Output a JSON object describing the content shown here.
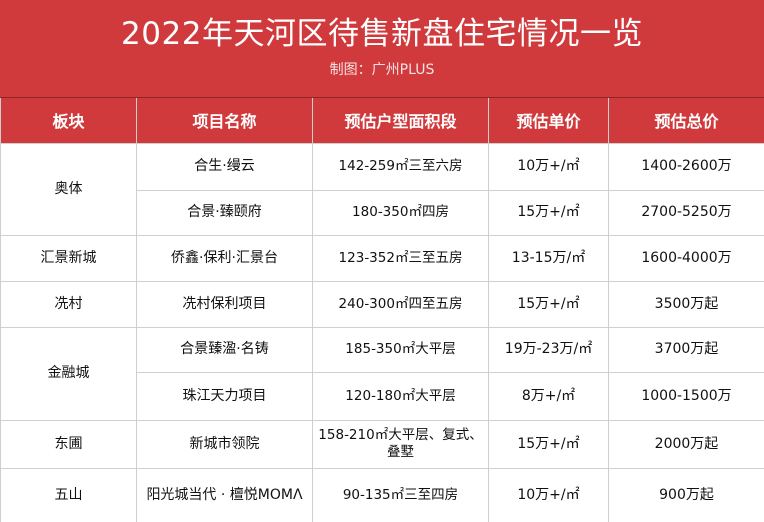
{
  "header": {
    "title": "2022年天河区待售新盘住宅情况一览",
    "subtitle": "制图：广州PLUS"
  },
  "table": {
    "columns": [
      "板块",
      "项目名称",
      "预估户型面积段",
      "预估单价",
      "预估总价"
    ],
    "rows": [
      {
        "block": "奥体",
        "project": "合生·缦云",
        "area": "142-259㎡三至六房",
        "unit_price": "10万+/㎡",
        "total_price": "1400-2600万"
      },
      {
        "block": "",
        "project": "合景·臻颐府",
        "area": "180-350㎡四房",
        "unit_price": "15万+/㎡",
        "total_price": "2700-5250万"
      },
      {
        "block": "汇景新城",
        "project": "侨鑫·保利·汇景台",
        "area": "123-352㎡三至五房",
        "unit_price": "13-15万/㎡",
        "total_price": "1600-4000万"
      },
      {
        "block": "冼村",
        "project": "冼村保利项目",
        "area": "240-300㎡四至五房",
        "unit_price": "15万+/㎡",
        "total_price": "3500万起"
      },
      {
        "block": "金融城",
        "project": "合景臻溋·名铸",
        "area": "185-350㎡大平层",
        "unit_price": "19万-23万/㎡",
        "total_price": "3700万起"
      },
      {
        "block": "",
        "project": "珠江天力项目",
        "area": "120-180㎡大平层",
        "unit_price": "8万+/㎡",
        "total_price": "1000-1500万"
      },
      {
        "block": "东圃",
        "project": "新城市领院",
        "area": "158-210㎡大平层、复式、叠墅",
        "unit_price": "15万+/㎡",
        "total_price": "2000万起"
      },
      {
        "block": "五山",
        "project": "阳光城当代 · 檀悦MOMΛ",
        "area": "90-135㎡三至四房",
        "unit_price": "10万+/㎡",
        "total_price": "900万起"
      }
    ]
  },
  "colors": {
    "header_red": "#d13a3c",
    "header_text": "#ffffff",
    "grid_line": "#cfcfcf"
  }
}
